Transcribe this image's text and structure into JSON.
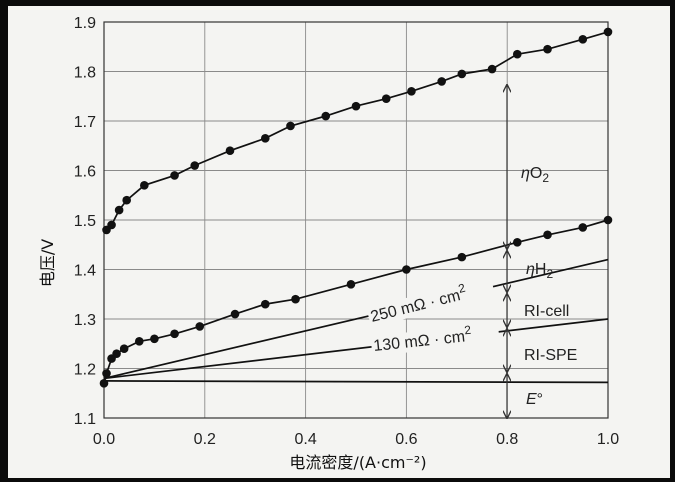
{
  "chart_data": {
    "type": "line",
    "xlabel": "电流密度/(A·cm⁻²)",
    "ylabel": "电压/V",
    "xlim": [
      0.0,
      1.0
    ],
    "ylim": [
      1.1,
      1.9
    ],
    "x_ticks": [
      "0.0",
      "0.2",
      "0.4",
      "0.6",
      "0.8",
      "1.0"
    ],
    "y_ticks": [
      "1.1",
      "1.2",
      "1.3",
      "1.4",
      "1.5",
      "1.6",
      "1.7",
      "1.8",
      "1.9"
    ],
    "grid": true,
    "series": [
      {
        "markers": true,
        "points": [
          [
            0.005,
            1.48
          ],
          [
            0.015,
            1.49
          ],
          [
            0.03,
            1.52
          ],
          [
            0.045,
            1.54
          ],
          [
            0.08,
            1.57
          ],
          [
            0.14,
            1.59
          ],
          [
            0.18,
            1.61
          ],
          [
            0.25,
            1.64
          ],
          [
            0.32,
            1.665
          ],
          [
            0.37,
            1.69
          ],
          [
            0.44,
            1.71
          ],
          [
            0.5,
            1.73
          ],
          [
            0.56,
            1.745
          ],
          [
            0.61,
            1.76
          ],
          [
            0.67,
            1.78
          ],
          [
            0.71,
            1.795
          ],
          [
            0.77,
            1.805
          ],
          [
            0.82,
            1.835
          ],
          [
            0.88,
            1.845
          ],
          [
            0.95,
            1.865
          ],
          [
            1.0,
            1.88
          ]
        ]
      },
      {
        "markers": true,
        "points": [
          [
            0.0,
            1.17
          ],
          [
            0.005,
            1.19
          ],
          [
            0.015,
            1.22
          ],
          [
            0.025,
            1.23
          ],
          [
            0.04,
            1.24
          ],
          [
            0.07,
            1.255
          ],
          [
            0.1,
            1.26
          ],
          [
            0.14,
            1.27
          ],
          [
            0.19,
            1.285
          ],
          [
            0.26,
            1.31
          ],
          [
            0.32,
            1.33
          ],
          [
            0.38,
            1.34
          ],
          [
            0.49,
            1.37
          ],
          [
            0.6,
            1.4
          ],
          [
            0.71,
            1.425
          ],
          [
            0.82,
            1.455
          ],
          [
            0.88,
            1.47
          ],
          [
            0.95,
            1.485
          ],
          [
            1.0,
            1.5
          ]
        ]
      },
      {
        "markers": false,
        "points": [
          [
            0.0,
            1.18
          ],
          [
            1.0,
            1.42
          ]
        ]
      },
      {
        "markers": false,
        "points": [
          [
            0.0,
            1.18
          ],
          [
            1.0,
            1.3
          ]
        ]
      },
      {
        "markers": false,
        "points": [
          [
            0.0,
            1.175
          ],
          [
            1.0,
            1.172
          ]
        ]
      }
    ],
    "annotations": {
      "eta_o2_prefix": "η",
      "eta_o2_base": "O",
      "eta_o2_sub": "2",
      "eta_h2_prefix": "η",
      "eta_h2_base": "H",
      "eta_h2_sub": "2",
      "ri_cell": "RI-cell",
      "ri_spe": "RI-SPE",
      "e_zero_italic": "E",
      "e_zero_mark": "°",
      "resistance_250_text": "250 mΩ · cm",
      "resistance_250_sup": "2",
      "resistance_130_text": "130 mΩ · cm",
      "resistance_130_sup": "2"
    }
  }
}
